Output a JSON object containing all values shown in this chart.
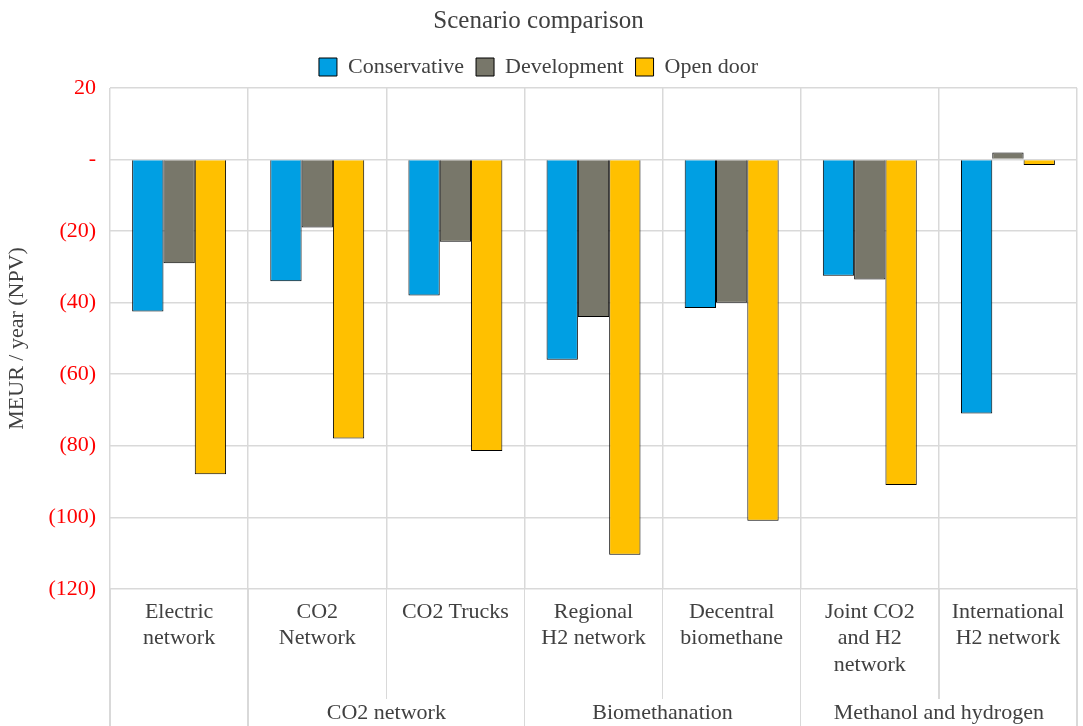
{
  "chart_data": {
    "type": "bar",
    "title": "Scenario comparison",
    "ylabel": "MEUR / year (NPV)",
    "categories": [
      "Electric network",
      "CO2 Network",
      "CO2 Trucks",
      "Regional H2 network",
      "Decentral biomethane",
      "Joint CO2 and H2 network",
      "International H2 network"
    ],
    "series": [
      {
        "name": "Conservative",
        "color": "#009fe3",
        "values": [
          -42.5,
          -34,
          -38,
          -56,
          -41.5,
          -32.5,
          -71
        ]
      },
      {
        "name": "Development",
        "color": "#78776a",
        "values": [
          -29,
          -19,
          -23,
          -44,
          -40,
          -33.5,
          2
        ]
      },
      {
        "name": "Open door",
        "color": "#ffc000",
        "values": [
          -88,
          -78,
          -81.5,
          -110.5,
          -101,
          -91,
          -1.5
        ]
      }
    ],
    "ylim": [
      -120,
      20
    ],
    "yticks": [
      {
        "value": -120,
        "label": "(120)"
      },
      {
        "value": -100,
        "label": "(100)"
      },
      {
        "value": -80,
        "label": "(80)"
      },
      {
        "value": -60,
        "label": "(60)"
      },
      {
        "value": -40,
        "label": "(40)"
      },
      {
        "value": -20,
        "label": "(20)"
      },
      {
        "value": 0,
        "label": "-"
      },
      {
        "value": 20,
        "label": "20"
      }
    ],
    "annotations": [
      "CO2 network",
      "Biomethanation",
      "Methanol and hydrogen"
    ],
    "grid": true,
    "legend": "top"
  }
}
